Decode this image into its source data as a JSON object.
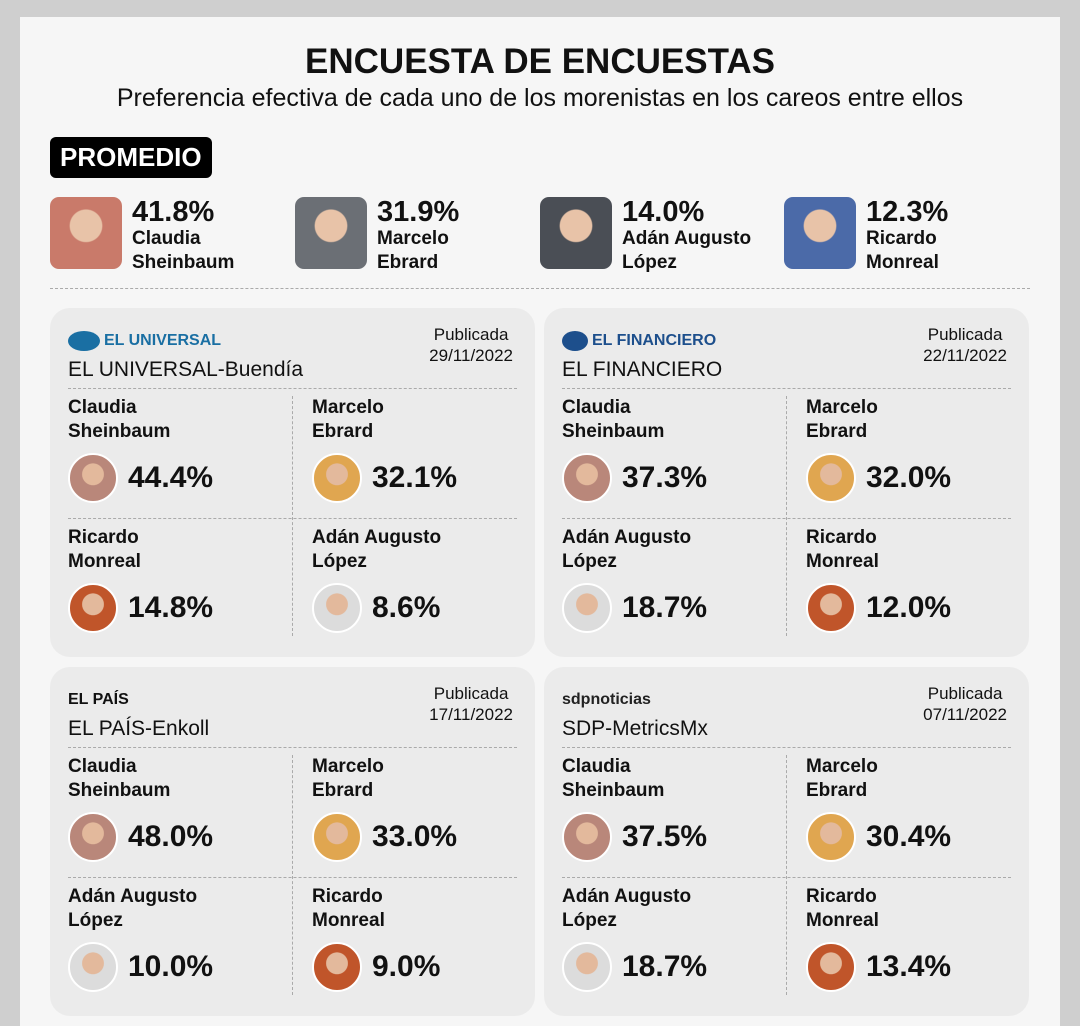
{
  "title": "ENCUESTA DE ENCUESTAS",
  "subtitle": "Preferencia efectiva de cada uno de los morenistas en los careos entre ellos",
  "promedio": {
    "label": "PROMEDIO",
    "items": [
      {
        "pct": "41.8%",
        "first": "Claudia",
        "last": "Sheinbaum",
        "color": "#c97a6a"
      },
      {
        "pct": "31.9%",
        "first": "Marcelo",
        "last": "Ebrard",
        "color": "#6b6f75"
      },
      {
        "pct": "14.0%",
        "first": "Adán Augusto",
        "last": "López",
        "color": "#4a4e55"
      },
      {
        "pct": "12.3%",
        "first": "Ricardo",
        "last": "Monreal",
        "color": "#4b6aa8"
      }
    ]
  },
  "polls": [
    {
      "logo": "EL UNIVERSAL",
      "logo_color": "#1a6fa3",
      "source": "EL UNIVERSAL-Buendía",
      "pub": "Publicada",
      "date": "29/11/2022",
      "cells": [
        {
          "first": "Claudia",
          "last": "Sheinbaum",
          "pct": "44.4%",
          "color": "#b9877a"
        },
        {
          "first": "Marcelo",
          "last": "Ebrard",
          "pct": "32.1%",
          "color": "#e0a650"
        },
        {
          "first": "Ricardo",
          "last": "Monreal",
          "pct": "14.8%",
          "color": "#c0552a"
        },
        {
          "first": "Adán Augusto",
          "last": "López",
          "pct": "8.6%",
          "color": "#dcdcdc"
        }
      ]
    },
    {
      "logo": "EL FINANCIERO",
      "logo_color": "#1d4f8c",
      "source": "EL FINANCIERO",
      "pub": "Publicada",
      "date": "22/11/2022",
      "cells": [
        {
          "first": "Claudia",
          "last": "Sheinbaum",
          "pct": "37.3%",
          "color": "#b9877a"
        },
        {
          "first": "Marcelo",
          "last": "Ebrard",
          "pct": "32.0%",
          "color": "#e0a650"
        },
        {
          "first": "Adán Augusto",
          "last": "López",
          "pct": "18.7%",
          "color": "#dcdcdc"
        },
        {
          "first": "Ricardo",
          "last": "Monreal",
          "pct": "12.0%",
          "color": "#c0552a"
        }
      ]
    },
    {
      "logo": "EL PAÍS",
      "logo_color": "#111111",
      "source": "EL PAÍS-Enkoll",
      "pub": "Publicada",
      "date": "17/11/2022",
      "cells": [
        {
          "first": "Claudia",
          "last": "Sheinbaum",
          "pct": "48.0%",
          "color": "#b9877a"
        },
        {
          "first": "Marcelo",
          "last": "Ebrard",
          "pct": "33.0%",
          "color": "#e0a650"
        },
        {
          "first": "Adán Augusto",
          "last": "López",
          "pct": "10.0%",
          "color": "#dcdcdc"
        },
        {
          "first": "Ricardo",
          "last": "Monreal",
          "pct": "9.0%",
          "color": "#c0552a"
        }
      ]
    },
    {
      "logo": "sdpnoticias",
      "logo_color": "#222222",
      "source": "SDP-MetricsMx",
      "pub": "Publicada",
      "date": "07/11/2022",
      "cells": [
        {
          "first": "Claudia",
          "last": "Sheinbaum",
          "pct": "37.5%",
          "color": "#b9877a"
        },
        {
          "first": "Marcelo",
          "last": "Ebrard",
          "pct": "30.4%",
          "color": "#e0a650"
        },
        {
          "first": "Adán Augusto",
          "last": "López",
          "pct": "18.7%",
          "color": "#dcdcdc"
        },
        {
          "first": "Ricardo",
          "last": "Monreal",
          "pct": "13.4%",
          "color": "#c0552a"
        }
      ]
    }
  ]
}
